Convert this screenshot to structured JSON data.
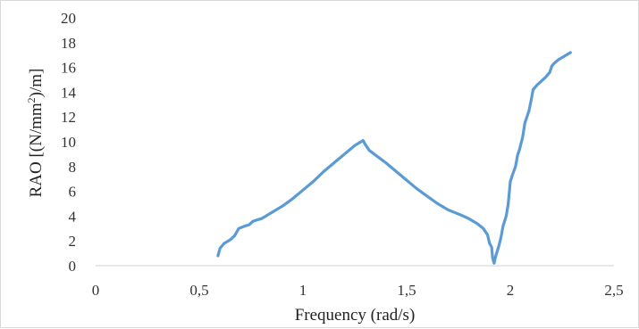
{
  "chart_data": {
    "type": "line",
    "xlabel": "Frequency (rad/s)",
    "ylabel_parts": {
      "before": "RAO [(N/mm",
      "sup": "2",
      "after": ")/m]"
    },
    "xlim": [
      0,
      2.5
    ],
    "ylim": [
      0,
      20
    ],
    "x_ticks": [
      0,
      0.5,
      1,
      1.5,
      2,
      2.5
    ],
    "x_tick_labels": [
      "0",
      "0,5",
      "1",
      "1,5",
      "2",
      "2,5"
    ],
    "y_ticks": [
      0,
      2,
      4,
      6,
      8,
      10,
      12,
      14,
      16,
      18,
      20
    ],
    "y_tick_labels": [
      "0",
      "2",
      "4",
      "6",
      "8",
      "10",
      "12",
      "14",
      "16",
      "18",
      "20"
    ],
    "grid": false,
    "series": [
      {
        "color": "#5b9bd5",
        "points": [
          [
            0.59,
            0.8
          ],
          [
            0.6,
            1.4
          ],
          [
            0.62,
            1.8
          ],
          [
            0.65,
            2.1
          ],
          [
            0.67,
            2.4
          ],
          [
            0.69,
            3.0
          ],
          [
            0.72,
            3.2
          ],
          [
            0.74,
            3.3
          ],
          [
            0.76,
            3.6
          ],
          [
            0.8,
            3.8
          ],
          [
            0.85,
            4.3
          ],
          [
            0.9,
            4.8
          ],
          [
            0.95,
            5.4
          ],
          [
            1.0,
            6.1
          ],
          [
            1.05,
            6.8
          ],
          [
            1.1,
            7.6
          ],
          [
            1.15,
            8.3
          ],
          [
            1.2,
            9.0
          ],
          [
            1.25,
            9.7
          ],
          [
            1.27,
            9.9
          ],
          [
            1.29,
            10.1
          ],
          [
            1.3,
            9.8
          ],
          [
            1.32,
            9.3
          ],
          [
            1.36,
            8.8
          ],
          [
            1.4,
            8.3
          ],
          [
            1.45,
            7.6
          ],
          [
            1.5,
            6.9
          ],
          [
            1.55,
            6.2
          ],
          [
            1.6,
            5.6
          ],
          [
            1.65,
            5.0
          ],
          [
            1.7,
            4.5
          ],
          [
            1.73,
            4.3
          ],
          [
            1.76,
            4.1
          ],
          [
            1.8,
            3.8
          ],
          [
            1.84,
            3.4
          ],
          [
            1.87,
            3.0
          ],
          [
            1.89,
            2.5
          ],
          [
            1.9,
            1.8
          ],
          [
            1.91,
            1.5
          ],
          [
            1.915,
            0.6
          ],
          [
            1.922,
            0.2
          ],
          [
            1.93,
            0.8
          ],
          [
            1.945,
            1.6
          ],
          [
            1.955,
            2.3
          ],
          [
            1.965,
            3.2
          ],
          [
            1.98,
            4.0
          ],
          [
            1.99,
            5.0
          ],
          [
            2.0,
            6.8
          ],
          [
            2.01,
            7.3
          ],
          [
            2.025,
            8.0
          ],
          [
            2.035,
            8.9
          ],
          [
            2.045,
            9.4
          ],
          [
            2.06,
            10.4
          ],
          [
            2.07,
            11.5
          ],
          [
            2.09,
            12.5
          ],
          [
            2.1,
            13.3
          ],
          [
            2.11,
            14.2
          ],
          [
            2.13,
            14.6
          ],
          [
            2.15,
            14.9
          ],
          [
            2.17,
            15.2
          ],
          [
            2.19,
            15.6
          ],
          [
            2.2,
            16.1
          ],
          [
            2.21,
            16.3
          ],
          [
            2.23,
            16.6
          ],
          [
            2.26,
            16.9
          ],
          [
            2.29,
            17.2
          ]
        ]
      }
    ]
  }
}
